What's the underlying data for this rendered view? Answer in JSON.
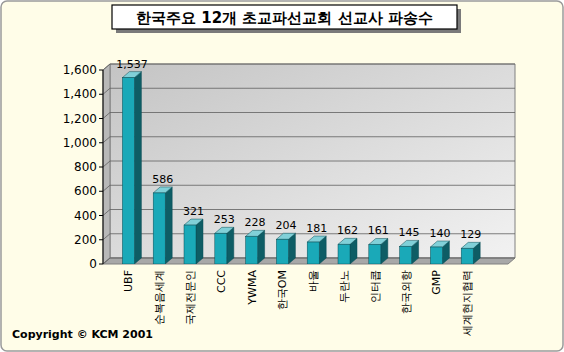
{
  "chart_data": {
    "type": "bar",
    "title": "한국주요 12개 초교파선교회 선교사 파송수",
    "categories": [
      "UBF",
      "순복음세계",
      "국제전문인",
      "CCC",
      "YWMA",
      "한국OM",
      "바울",
      "두란노",
      "인터콥",
      "한국외항",
      "GMP",
      "세계현지협력"
    ],
    "values": [
      1537,
      586,
      321,
      253,
      228,
      204,
      181,
      162,
      161,
      145,
      140,
      129
    ],
    "value_labels": [
      "1,537",
      "586",
      "321",
      "253",
      "228",
      "204",
      "181",
      "162",
      "161",
      "145",
      "140",
      "129"
    ],
    "color": "#1aa9b8",
    "ylim": [
      0,
      1600
    ],
    "yticks": [
      0,
      200,
      400,
      600,
      800,
      {
        "value": 1000,
        "label": "1,000"
      },
      {
        "value": 1200,
        "label": "1,200"
      },
      {
        "value": 1400,
        "label": "1,400"
      },
      {
        "value": 1600,
        "label": "1,600"
      }
    ],
    "grid": true,
    "data_labels": true,
    "annotations": [
      "Copyright © KCM 2001"
    ]
  }
}
